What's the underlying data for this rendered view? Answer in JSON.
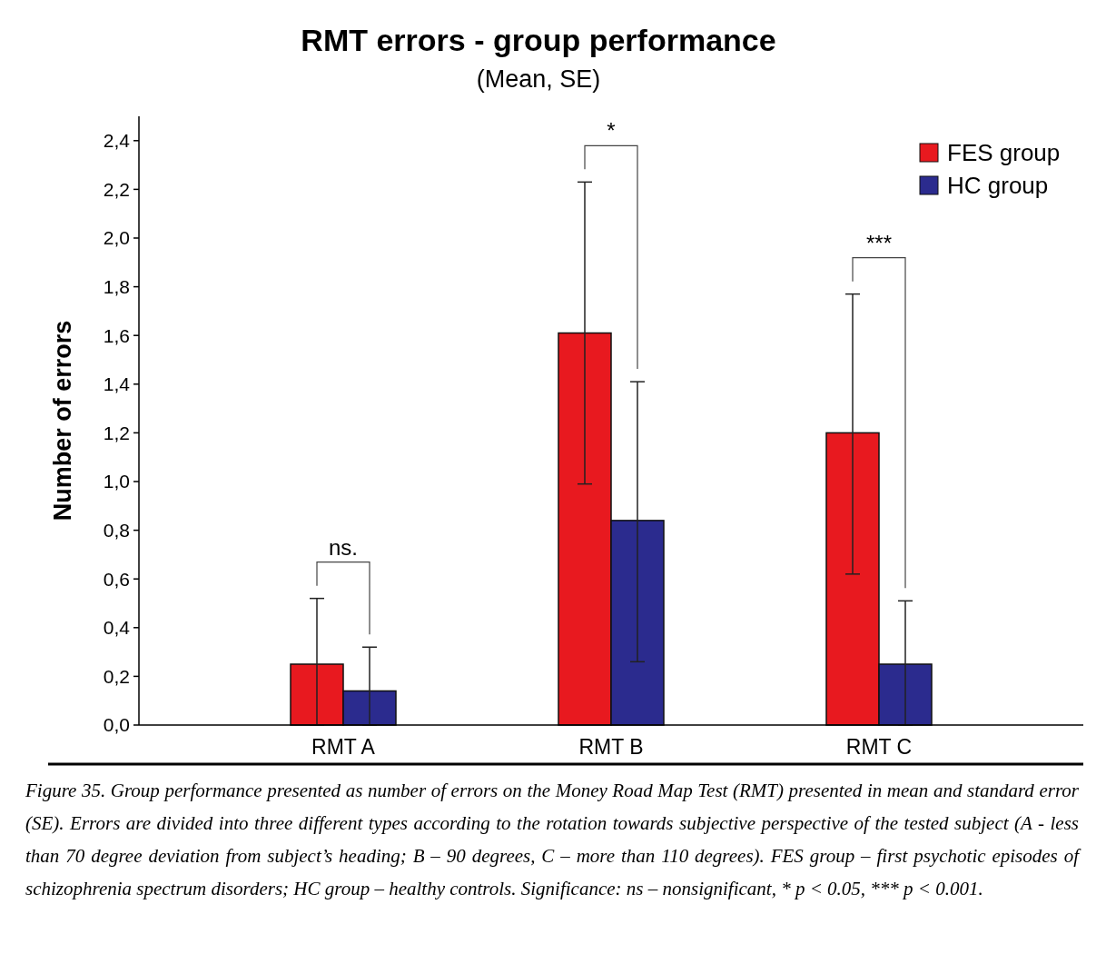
{
  "chart_data": {
    "type": "bar",
    "title": "RMT errors - group performance",
    "subtitle": "(Mean, SE)",
    "ylabel": "Number of errors",
    "categories": [
      "RMT A",
      "RMT B",
      "RMT C"
    ],
    "series": [
      {
        "name": "FES group",
        "color": "#e8191f",
        "values": [
          0.25,
          1.61,
          1.2
        ],
        "errors": [
          [
            0,
            0.52
          ],
          [
            0.99,
            2.23
          ],
          [
            0.62,
            1.77
          ]
        ]
      },
      {
        "name": "HC group",
        "color": "#2b2b8e",
        "values": [
          0.14,
          0.84,
          0.25
        ],
        "errors": [
          [
            0,
            0.32
          ],
          [
            0.26,
            1.41
          ],
          [
            0,
            0.51
          ]
        ]
      }
    ],
    "ylim": [
      0,
      2.5
    ],
    "yticks": [
      {
        "value": 0,
        "label": "0,0"
      },
      {
        "value": 0.2,
        "label": "0,2"
      },
      {
        "value": 0.4,
        "label": "0,4"
      },
      {
        "value": 0.6,
        "label": "0,6"
      },
      {
        "value": 0.8,
        "label": "0,8"
      },
      {
        "value": 1,
        "label": "1,0"
      },
      {
        "value": 1.2,
        "label": "1,2"
      },
      {
        "value": 1.4,
        "label": "1,4"
      },
      {
        "value": 1.6,
        "label": "1,6"
      },
      {
        "value": 1.8,
        "label": "1,8"
      },
      {
        "value": 2,
        "label": "2,0"
      },
      {
        "value": 2.2,
        "label": "2,2"
      },
      {
        "value": 2.4,
        "label": "2,4"
      }
    ],
    "grid": false,
    "legend": "top right",
    "annotations": [
      "ns.",
      "*",
      "***",
      "Figure 35. Group performance presented as number of errors on the Money Road Map Test (RMT) presented in mean and standard error (SE).  Errors are divided into three different types according to the rotation towards subjective perspective of the tested subject (A - less than 70 degree deviation from subject’s heading; B – 90 degrees, C – more than 110 degrees). FES group – first psychotic episodes of schizophrenia spectrum disorders; HC group – healthy controls. Significance: ns – nonsignificant, * p < 0.05, *** p < 0.001."
    ]
  }
}
